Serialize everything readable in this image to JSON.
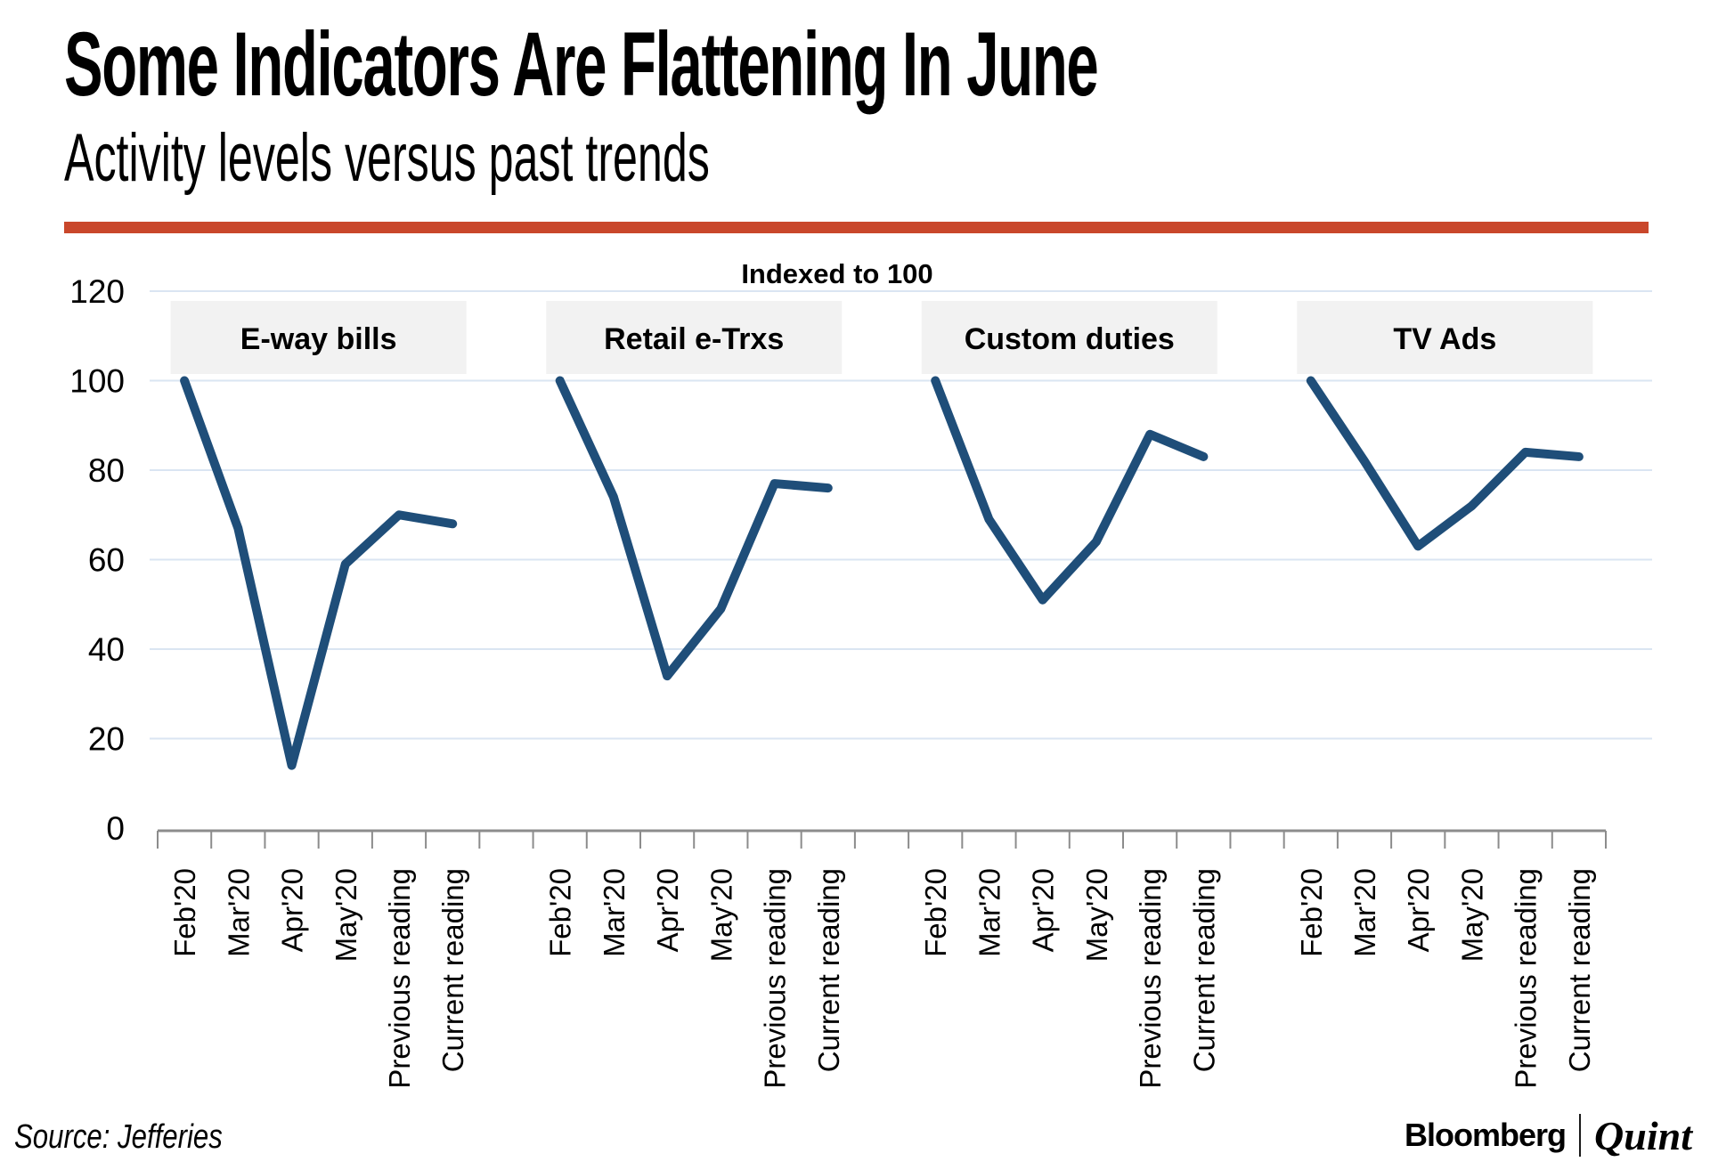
{
  "header": {
    "title": "Some Indicators Are Flattening In June",
    "subtitle": "Activity levels versus past trends",
    "accent_color": "#C9472B"
  },
  "chart_data": {
    "type": "line",
    "title": "Indexed to 100",
    "categories": [
      "Feb'20",
      "Mar'20",
      "Apr'20",
      "May'20",
      "Previous reading",
      "Current reading"
    ],
    "panels": [
      {
        "label": "E-way bills",
        "values": [
          100,
          67,
          14,
          59,
          70,
          68
        ]
      },
      {
        "label": "Retail e-Trxs",
        "values": [
          100,
          74,
          34,
          49,
          77,
          76
        ]
      },
      {
        "label": "Custom duties",
        "values": [
          100,
          69,
          51,
          64,
          88,
          83
        ]
      },
      {
        "label": "TV Ads",
        "values": [
          100,
          82,
          63,
          72,
          84,
          83
        ]
      }
    ],
    "ylim": [
      0,
      120
    ],
    "yticks": [
      0,
      20,
      40,
      60,
      80,
      100,
      120
    ],
    "grid": true,
    "legend": "none",
    "line_color": "#1F4E79",
    "grid_color": "#DAE5F2",
    "axis_color": "#8C8C8C",
    "panel_box_fill": "#F2F2F2",
    "label_color": "#000000"
  },
  "footer": {
    "source": "Source: Jefferies",
    "brand": {
      "name1": "Bloomberg",
      "separator": "|",
      "name2": "Quint"
    }
  }
}
